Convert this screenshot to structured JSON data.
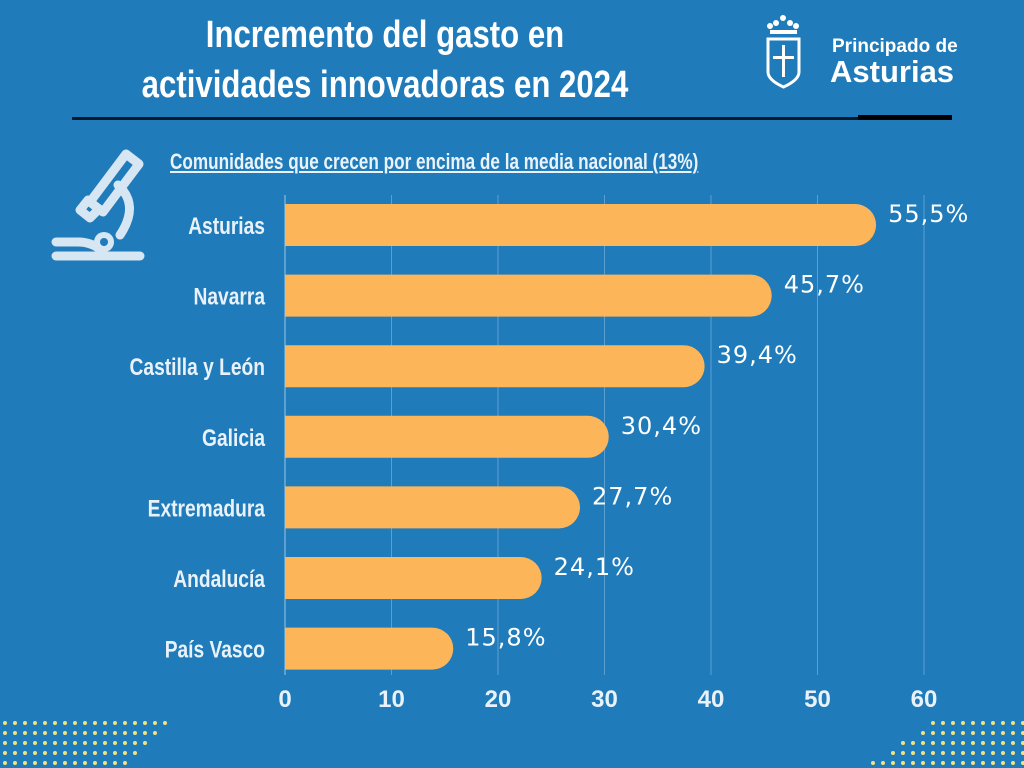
{
  "header": {
    "title_line1": "Incremento del gasto en",
    "title_line2": "actividades innovadoras en 2024",
    "logo_line1": "Principado de",
    "logo_line2": "Asturias"
  },
  "icons": {
    "illustration": "microscope-icon",
    "logo": "asturias-coat-of-arms"
  },
  "colors": {
    "background": "#1f7bb9",
    "bar": "#fdb55a",
    "text": "#ffffff"
  },
  "chart_data": {
    "type": "bar",
    "orientation": "horizontal",
    "title": "Comunidades que crecen por encima de la media nacional (13%)",
    "categories": [
      "Asturias",
      "Navarra",
      "Castilla y León",
      "Galicia",
      "Extremadura",
      "Andalucía",
      "País Vasco"
    ],
    "values": [
      55.5,
      45.7,
      39.4,
      30.4,
      27.7,
      24.1,
      15.8
    ],
    "value_labels": [
      "55,5%",
      "45,7%",
      "39,4%",
      "30,4%",
      "27,7%",
      "24,1%",
      "15,8%"
    ],
    "xlim": [
      0,
      60
    ],
    "xticks": [
      "0",
      "10",
      "20",
      "30",
      "40",
      "50",
      "60"
    ],
    "grid": true,
    "xlabel": "",
    "ylabel": ""
  }
}
